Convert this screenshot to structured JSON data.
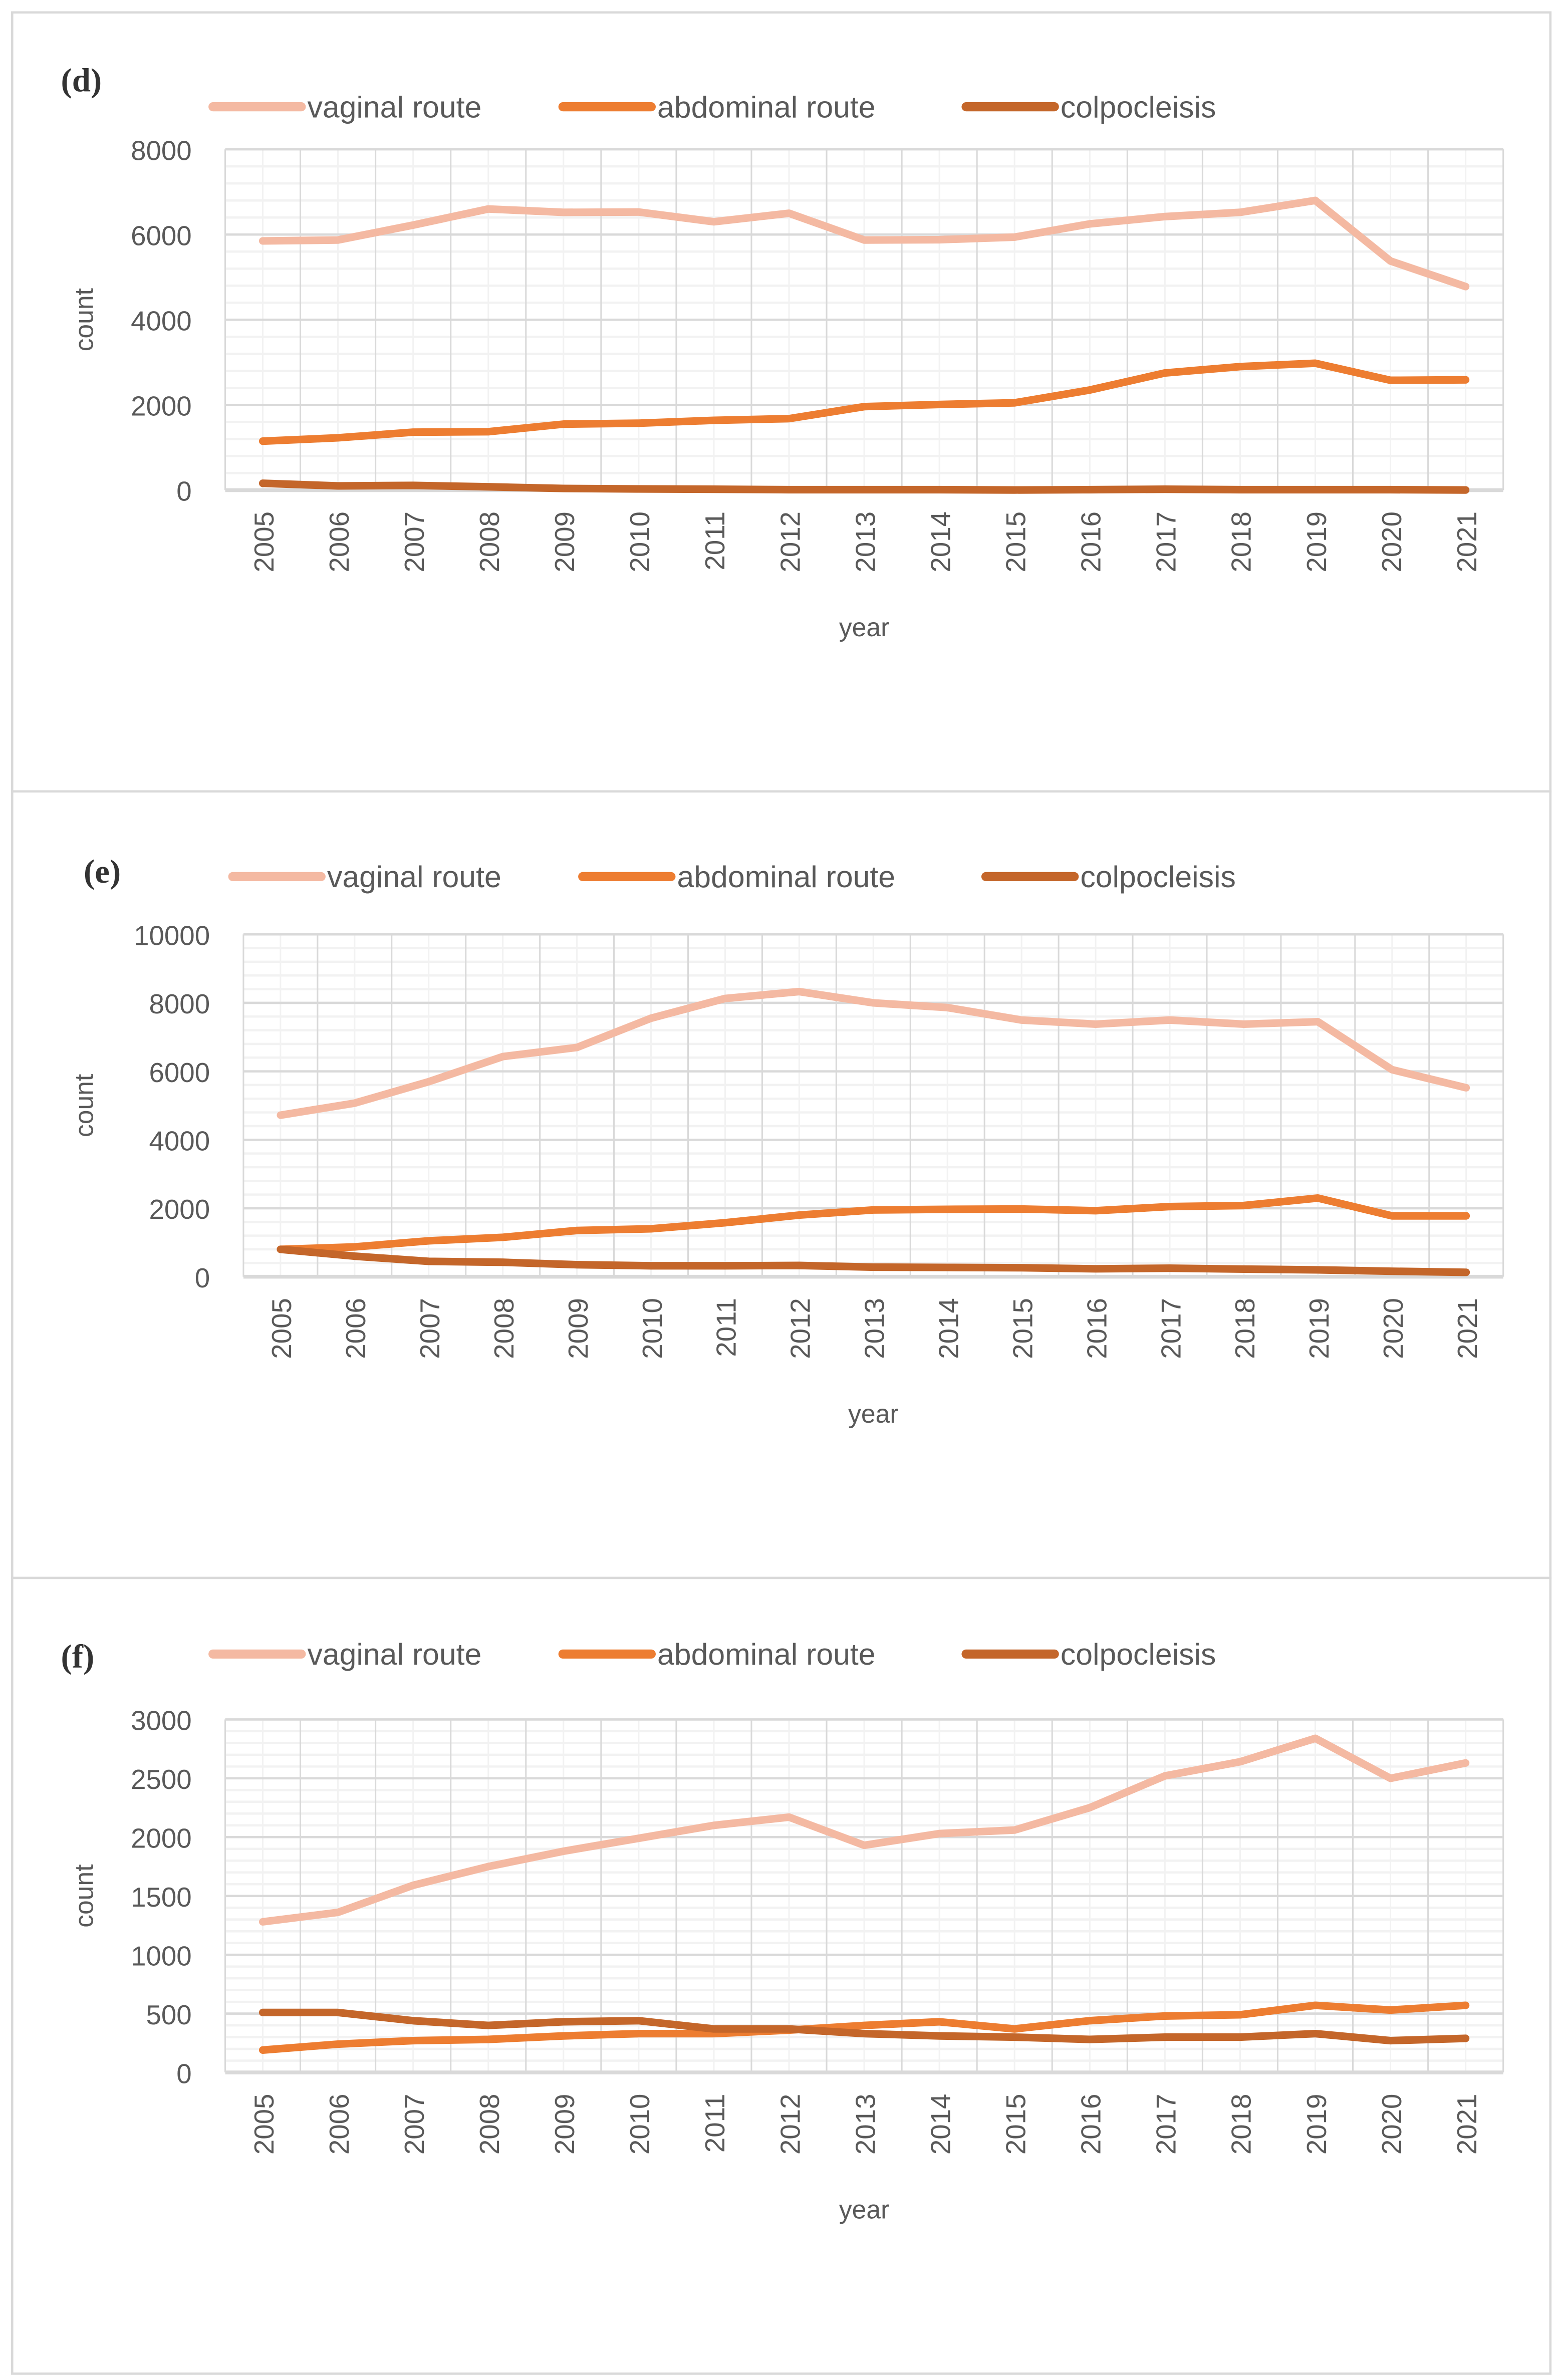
{
  "colors": {
    "vaginal": "#F4B9A2",
    "abdominal": "#ED7D31",
    "colpocleisis": "#C4662A",
    "grid_major": "#D9D9D9",
    "grid_minor": "#F2F2F2"
  },
  "chart_data": [
    {
      "type": "line",
      "panel_label": "(d)",
      "xlabel": "year",
      "ylabel": "count",
      "ylim": [
        0,
        8000
      ],
      "yticks": [
        "0",
        "2000",
        "4000",
        "6000",
        "8000"
      ],
      "ytick_values": [
        0,
        2000,
        4000,
        6000,
        8000
      ],
      "legend_position": "top",
      "grid": true,
      "categories": [
        "2005",
        "2006",
        "2007",
        "2008",
        "2009",
        "2010",
        "2011",
        "2012",
        "2013",
        "2014",
        "2015",
        "2016",
        "2017",
        "2018",
        "2019",
        "2020",
        "2021"
      ],
      "series": [
        {
          "name": "vaginal route",
          "key": "vaginal",
          "values": [
            5850,
            5870,
            6220,
            6600,
            6520,
            6530,
            6300,
            6500,
            5870,
            5880,
            5940,
            6250,
            6420,
            6520,
            6800,
            5380,
            4780
          ]
        },
        {
          "name": "abdominal route",
          "key": "abdominal",
          "values": [
            1150,
            1230,
            1360,
            1370,
            1550,
            1570,
            1640,
            1680,
            1960,
            2010,
            2050,
            2350,
            2750,
            2900,
            2980,
            2580,
            2590
          ]
        },
        {
          "name": "colpocleisis",
          "key": "colpocleisis",
          "values": [
            160,
            100,
            110,
            80,
            40,
            30,
            20,
            10,
            10,
            10,
            5,
            10,
            20,
            10,
            10,
            10,
            5
          ]
        }
      ]
    },
    {
      "type": "line",
      "panel_label": "(e)",
      "xlabel": "year",
      "ylabel": "count",
      "ylim": [
        0,
        10000
      ],
      "yticks": [
        "0",
        "2000",
        "4000",
        "6000",
        "8000",
        "10000"
      ],
      "ytick_values": [
        0,
        2000,
        4000,
        6000,
        8000,
        10000
      ],
      "legend_position": "top",
      "grid": true,
      "categories": [
        "2005",
        "2006",
        "2007",
        "2008",
        "2009",
        "2010",
        "2011",
        "2012",
        "2013",
        "2014",
        "2015",
        "2016",
        "2017",
        "2018",
        "2019",
        "2020",
        "2021"
      ],
      "series": [
        {
          "name": "vaginal route",
          "key": "vaginal",
          "values": [
            4720,
            5070,
            5700,
            6430,
            6700,
            7550,
            8130,
            8330,
            8000,
            7860,
            7500,
            7380,
            7500,
            7380,
            7450,
            6050,
            5520
          ]
        },
        {
          "name": "abdominal route",
          "key": "abdominal",
          "values": [
            800,
            870,
            1050,
            1150,
            1350,
            1400,
            1580,
            1800,
            1950,
            1970,
            1980,
            1930,
            2050,
            2080,
            2300,
            1780,
            1780
          ]
        },
        {
          "name": "colpocleisis",
          "key": "colpocleisis",
          "values": [
            800,
            600,
            450,
            420,
            350,
            320,
            320,
            330,
            280,
            270,
            260,
            230,
            250,
            220,
            200,
            160,
            130
          ]
        }
      ]
    },
    {
      "type": "line",
      "panel_label": "(f)",
      "xlabel": "year",
      "ylabel": "count",
      "ylim": [
        0,
        3000
      ],
      "yticks": [
        "0",
        "500",
        "1000",
        "1500",
        "2000",
        "2500",
        "3000"
      ],
      "ytick_values": [
        0,
        500,
        1000,
        1500,
        2000,
        2500,
        3000
      ],
      "legend_position": "top",
      "grid": true,
      "categories": [
        "2005",
        "2006",
        "2007",
        "2008",
        "2009",
        "2010",
        "2011",
        "2012",
        "2013",
        "2014",
        "2015",
        "2016",
        "2017",
        "2018",
        "2019",
        "2020",
        "2021"
      ],
      "series": [
        {
          "name": "vaginal route",
          "key": "vaginal",
          "values": [
            1280,
            1360,
            1590,
            1750,
            1880,
            1990,
            2100,
            2170,
            1930,
            2030,
            2060,
            2250,
            2520,
            2640,
            2840,
            2500,
            2630
          ]
        },
        {
          "name": "abdominal route",
          "key": "abdominal",
          "values": [
            190,
            240,
            270,
            280,
            310,
            330,
            330,
            360,
            400,
            430,
            370,
            440,
            480,
            490,
            570,
            530,
            570
          ]
        },
        {
          "name": "colpocleisis",
          "key": "colpocleisis",
          "values": [
            510,
            510,
            440,
            400,
            430,
            440,
            370,
            370,
            330,
            310,
            300,
            280,
            300,
            300,
            330,
            270,
            290
          ]
        }
      ]
    }
  ]
}
